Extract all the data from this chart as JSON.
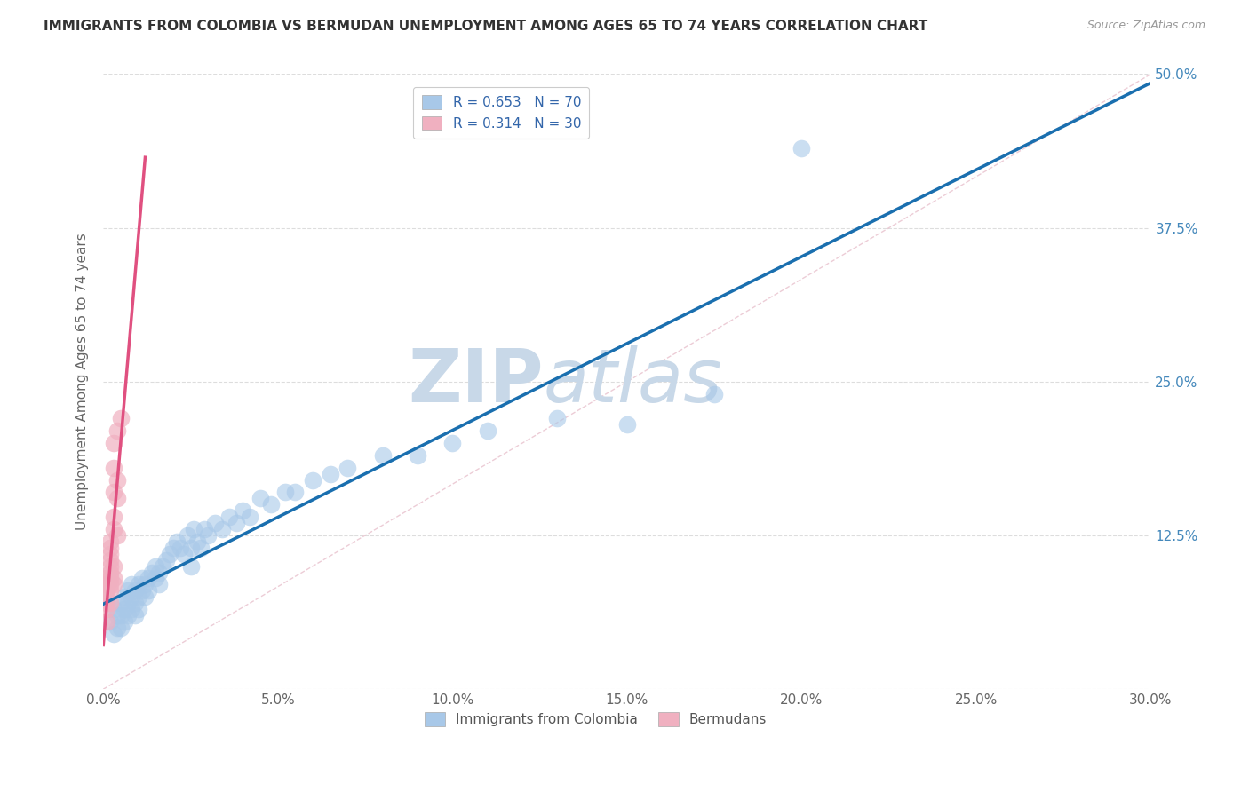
{
  "title": "IMMIGRANTS FROM COLOMBIA VS BERMUDAN UNEMPLOYMENT AMONG AGES 65 TO 74 YEARS CORRELATION CHART",
  "source": "Source: ZipAtlas.com",
  "ylabel": "Unemployment Among Ages 65 to 74 years",
  "xlim": [
    0,
    0.3
  ],
  "ylim": [
    0,
    0.5
  ],
  "legend1_R": "0.653",
  "legend1_N": "70",
  "legend2_R": "0.314",
  "legend2_N": "30",
  "legend_bottom_label1": "Immigrants from Colombia",
  "legend_bottom_label2": "Bermudans",
  "blue_color": "#a8c8e8",
  "blue_line_color": "#1a6faf",
  "pink_color": "#f0b0c0",
  "pink_line_color": "#e05080",
  "diag_color": "#e0b0c0",
  "blue_scatter": [
    [
      0.002,
      0.055
    ],
    [
      0.003,
      0.045
    ],
    [
      0.003,
      0.065
    ],
    [
      0.004,
      0.05
    ],
    [
      0.004,
      0.06
    ],
    [
      0.005,
      0.05
    ],
    [
      0.005,
      0.06
    ],
    [
      0.005,
      0.07
    ],
    [
      0.006,
      0.055
    ],
    [
      0.006,
      0.065
    ],
    [
      0.006,
      0.075
    ],
    [
      0.007,
      0.06
    ],
    [
      0.007,
      0.07
    ],
    [
      0.007,
      0.08
    ],
    [
      0.008,
      0.065
    ],
    [
      0.008,
      0.075
    ],
    [
      0.008,
      0.085
    ],
    [
      0.009,
      0.07
    ],
    [
      0.009,
      0.08
    ],
    [
      0.009,
      0.06
    ],
    [
      0.01,
      0.075
    ],
    [
      0.01,
      0.085
    ],
    [
      0.01,
      0.065
    ],
    [
      0.011,
      0.08
    ],
    [
      0.011,
      0.09
    ],
    [
      0.012,
      0.085
    ],
    [
      0.012,
      0.075
    ],
    [
      0.013,
      0.09
    ],
    [
      0.013,
      0.08
    ],
    [
      0.014,
      0.095
    ],
    [
      0.015,
      0.09
    ],
    [
      0.015,
      0.1
    ],
    [
      0.016,
      0.095
    ],
    [
      0.016,
      0.085
    ],
    [
      0.017,
      0.1
    ],
    [
      0.018,
      0.105
    ],
    [
      0.019,
      0.11
    ],
    [
      0.02,
      0.115
    ],
    [
      0.021,
      0.12
    ],
    [
      0.022,
      0.115
    ],
    [
      0.023,
      0.11
    ],
    [
      0.024,
      0.125
    ],
    [
      0.025,
      0.1
    ],
    [
      0.025,
      0.115
    ],
    [
      0.026,
      0.13
    ],
    [
      0.027,
      0.12
    ],
    [
      0.028,
      0.115
    ],
    [
      0.029,
      0.13
    ],
    [
      0.03,
      0.125
    ],
    [
      0.032,
      0.135
    ],
    [
      0.034,
      0.13
    ],
    [
      0.036,
      0.14
    ],
    [
      0.038,
      0.135
    ],
    [
      0.04,
      0.145
    ],
    [
      0.042,
      0.14
    ],
    [
      0.045,
      0.155
    ],
    [
      0.048,
      0.15
    ],
    [
      0.052,
      0.16
    ],
    [
      0.055,
      0.16
    ],
    [
      0.06,
      0.17
    ],
    [
      0.065,
      0.175
    ],
    [
      0.07,
      0.18
    ],
    [
      0.08,
      0.19
    ],
    [
      0.09,
      0.19
    ],
    [
      0.1,
      0.2
    ],
    [
      0.11,
      0.21
    ],
    [
      0.13,
      0.22
    ],
    [
      0.15,
      0.215
    ],
    [
      0.175,
      0.24
    ],
    [
      0.2,
      0.44
    ]
  ],
  "pink_scatter": [
    [
      0.001,
      0.055
    ],
    [
      0.001,
      0.065
    ],
    [
      0.001,
      0.07
    ],
    [
      0.001,
      0.075
    ],
    [
      0.001,
      0.08
    ],
    [
      0.001,
      0.085
    ],
    [
      0.001,
      0.09
    ],
    [
      0.002,
      0.07
    ],
    [
      0.002,
      0.08
    ],
    [
      0.002,
      0.085
    ],
    [
      0.002,
      0.09
    ],
    [
      0.002,
      0.095
    ],
    [
      0.002,
      0.1
    ],
    [
      0.002,
      0.105
    ],
    [
      0.002,
      0.11
    ],
    [
      0.002,
      0.115
    ],
    [
      0.002,
      0.12
    ],
    [
      0.003,
      0.085
    ],
    [
      0.003,
      0.09
    ],
    [
      0.003,
      0.1
    ],
    [
      0.003,
      0.13
    ],
    [
      0.003,
      0.14
    ],
    [
      0.003,
      0.16
    ],
    [
      0.003,
      0.18
    ],
    [
      0.003,
      0.2
    ],
    [
      0.004,
      0.125
    ],
    [
      0.004,
      0.155
    ],
    [
      0.004,
      0.17
    ],
    [
      0.004,
      0.21
    ],
    [
      0.005,
      0.22
    ]
  ],
  "background_color": "#ffffff",
  "grid_color": "#dddddd",
  "watermark_zip": "ZIP",
  "watermark_atlas": "atlas",
  "watermark_color": "#c8d8e8"
}
